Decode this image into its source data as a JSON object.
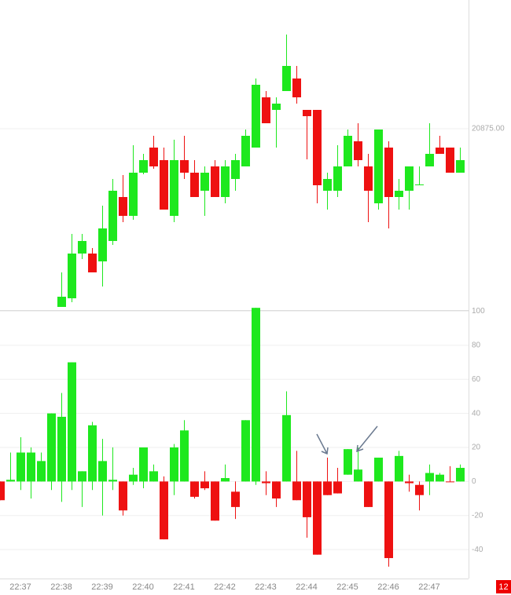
{
  "chart_data": [
    {
      "type": "candlestick",
      "open": [
        null,
        null,
        null,
        null,
        null,
        null,
        20818.25,
        20821,
        20835.25,
        20835.25,
        20832.75,
        20839.25,
        20853.25,
        20847.25,
        20861,
        20869,
        20865,
        20847.25,
        20865,
        20861,
        20855.25,
        20863,
        20853.25,
        20859,
        20863,
        20869,
        20885,
        20881,
        20887,
        20891,
        20881,
        20881,
        20855.25,
        20855.25,
        20863,
        20871,
        20863,
        20851.25,
        20869,
        20853.25,
        20855.25,
        20857,
        20863,
        20869,
        20869,
        20861
      ],
      "high": [
        null,
        null,
        null,
        null,
        null,
        null,
        20829.25,
        20841.5,
        20841.5,
        20837,
        20850.5,
        20859,
        20860.25,
        20869.75,
        20867,
        20872.75,
        20869,
        20871.5,
        20872.75,
        20865,
        20863,
        20865,
        20865,
        20867,
        20874.75,
        20891,
        20887,
        20885,
        20905,
        20895,
        20881,
        20881,
        20861,
        20869.75,
        20874.75,
        20876.75,
        20867,
        20874.75,
        20871,
        20859,
        20863,
        20863,
        20876.75,
        20872.75,
        20869,
        20869
      ],
      "low": [
        null,
        null,
        null,
        null,
        null,
        null,
        20818.25,
        20819.75,
        20833.5,
        20829.25,
        20824.75,
        20838,
        20845.25,
        20846,
        20860.5,
        20862.25,
        20849.25,
        20845.25,
        20859,
        20853.25,
        20847.25,
        20853.25,
        20851.25,
        20855.25,
        20863,
        20869,
        20876.75,
        20869,
        20887,
        20883,
        20865.25,
        20851.25,
        20849.25,
        20853.25,
        20863,
        20863,
        20845.25,
        20849.25,
        20843.25,
        20849.25,
        20849.25,
        20857,
        20863,
        20867,
        20861,
        20861
      ],
      "close": [
        null,
        null,
        null,
        null,
        null,
        null,
        20821.5,
        20835.25,
        20839.25,
        20829.25,
        20843.25,
        20855.25,
        20847.25,
        20861,
        20865,
        20863,
        20849.25,
        20865,
        20861,
        20853.25,
        20861,
        20853.25,
        20863,
        20865,
        20872.75,
        20889,
        20876.75,
        20883,
        20895,
        20885,
        20879,
        20857,
        20859,
        20863,
        20872.75,
        20865,
        20855.25,
        20874.75,
        20853.25,
        20855.25,
        20863,
        20857.25,
        20867,
        20867,
        20861,
        20865
      ],
      "up_color": "#1ee81e",
      "down_color": "#ee1111",
      "ylim": [
        20817.25,
        20916
      ],
      "yticks": [
        {
          "value": 20875,
          "label": "20875.00"
        }
      ],
      "grid": true
    },
    {
      "type": "candlestick",
      "categories": [
        null,
        null,
        "22:37",
        null,
        null,
        null,
        "22:38",
        null,
        null,
        null,
        "22:39",
        null,
        null,
        null,
        "22:40",
        null,
        null,
        null,
        "22:41",
        null,
        null,
        null,
        "22:42",
        null,
        null,
        null,
        "22:43",
        null,
        null,
        null,
        "22:44",
        null,
        null,
        null,
        "22:45",
        null,
        null,
        null,
        "22:46",
        null,
        null,
        null,
        "22:47",
        null,
        null,
        null
      ],
      "open": [
        0,
        0,
        0,
        0,
        0,
        0,
        0,
        0,
        0,
        0,
        0,
        0,
        0,
        0,
        0,
        0,
        0,
        0,
        0,
        0,
        0,
        0,
        0,
        -6,
        0,
        0,
        0,
        0,
        0,
        0,
        0,
        0,
        0,
        0,
        4,
        0,
        0,
        0,
        0,
        0,
        0,
        -2,
        0,
        0,
        0,
        0
      ],
      "high": [
        0,
        17,
        26,
        20,
        17,
        40,
        52,
        70,
        6,
        35,
        25,
        20,
        0,
        8,
        20,
        10,
        3,
        22,
        36,
        0,
        6,
        0,
        10,
        0,
        36,
        102,
        6,
        0,
        53,
        18,
        0,
        0,
        14,
        8,
        19,
        20,
        0,
        14,
        0,
        18,
        4,
        0,
        10,
        5,
        9,
        10
      ],
      "low": [
        -11,
        0,
        -5,
        -10,
        0,
        -5,
        -12,
        -5,
        -15,
        -5,
        -20,
        -5,
        -20,
        -2,
        -4,
        0,
        -34,
        -8,
        0,
        -10,
        -5,
        -23,
        0,
        -22,
        0,
        -2,
        -8,
        -15,
        0,
        -11,
        -33,
        -43,
        -8,
        -7,
        4,
        0,
        -15,
        0,
        -50,
        0,
        -6,
        -17,
        -8,
        0,
        0,
        0
      ],
      "close": [
        -11,
        1,
        17,
        17,
        12,
        40,
        38,
        70,
        6,
        33,
        12,
        1,
        -17,
        4,
        20,
        6,
        -34,
        20,
        30,
        -9,
        -4,
        -23,
        2,
        -15,
        36,
        102,
        -1,
        -10,
        39,
        -11,
        -21,
        -43,
        -8,
        -7,
        19,
        7,
        -15,
        14,
        -45,
        15,
        -1,
        -8,
        5,
        4,
        0,
        8
      ],
      "up_color": "#1ee81e",
      "down_color": "#ee1111",
      "ylim": [
        -57,
        103
      ],
      "yticks": [
        100,
        80,
        60,
        40,
        20,
        0,
        -20,
        -40
      ],
      "grid": true
    }
  ],
  "badge": "12"
}
